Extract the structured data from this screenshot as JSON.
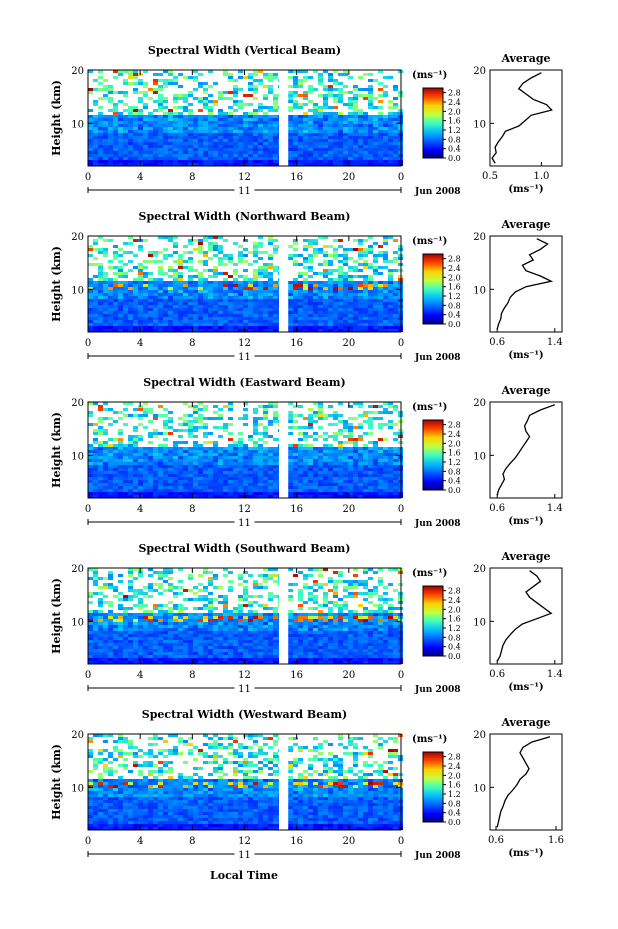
{
  "figure": {
    "xlabel": "Local Time",
    "cbar_unit": "(ms⁻¹)",
    "cbar_ticks": [
      "0.0",
      "0.4",
      "0.8",
      "1.2",
      "1.6",
      "2.0",
      "2.4",
      "2.8"
    ],
    "avg_title": "Average",
    "avg_xlabel": "(ms⁻¹)",
    "date_label": "Jun 2008",
    "day_label": "11",
    "x_ticks": [
      "0",
      "4",
      "8",
      "12",
      "16",
      "20",
      "0"
    ],
    "y_label": "Height (km)",
    "y_ticks": [
      "10",
      "20"
    ]
  },
  "chart_data": [
    {
      "type": "heatmap",
      "title": "Spectral Width (Vertical Beam)",
      "xlabel": "Local Time",
      "ylabel": "Height (km)",
      "xlim": [
        0,
        24
      ],
      "ylim": [
        2,
        20
      ],
      "clim": [
        0.0,
        3.0
      ],
      "data_gap_hours": [
        14.8,
        15.2
      ],
      "average_profile": {
        "title": "Average",
        "xlabel": "(ms⁻¹)",
        "x_ticks": [
          "0.5",
          "1.0"
        ],
        "xlim": [
          0.5,
          1.2
        ],
        "height_km": [
          2.5,
          3.5,
          4.5,
          5.5,
          6.5,
          7.5,
          8.5,
          9.5,
          10.5,
          11.5,
          12.5,
          13.5,
          14.5,
          15.5,
          16.5,
          17.5,
          18.5,
          19.5
        ],
        "values": [
          0.55,
          0.52,
          0.56,
          0.55,
          0.58,
          0.62,
          0.65,
          0.78,
          0.84,
          0.9,
          1.1,
          1.05,
          0.92,
          0.85,
          0.78,
          0.82,
          0.9,
          1.0
        ]
      }
    },
    {
      "type": "heatmap",
      "title": "Spectral Width (Northward Beam)",
      "xlabel": "Local Time",
      "ylabel": "Height (km)",
      "xlim": [
        0,
        24
      ],
      "ylim": [
        2,
        20
      ],
      "clim": [
        0.0,
        3.0
      ],
      "data_gap_hours": [
        14.8,
        15.2
      ],
      "average_profile": {
        "title": "Average",
        "xlabel": "(ms⁻¹)",
        "x_ticks": [
          "0.6",
          "1.4"
        ],
        "xlim": [
          0.5,
          1.5
        ],
        "height_km": [
          2.5,
          3.5,
          4.5,
          5.5,
          6.5,
          7.5,
          8.5,
          9.5,
          10.5,
          11.5,
          12.5,
          13.5,
          14.5,
          15.5,
          16.5,
          17.5,
          18.5,
          19.5
        ],
        "values": [
          0.6,
          0.62,
          0.65,
          0.66,
          0.7,
          0.75,
          0.78,
          0.85,
          1.0,
          1.35,
          1.2,
          1.0,
          0.95,
          1.1,
          1.05,
          1.2,
          1.3,
          1.15
        ]
      }
    },
    {
      "type": "heatmap",
      "title": "Spectral Width (Eastward Beam)",
      "xlabel": "Local Time",
      "ylabel": "Height (km)",
      "xlim": [
        0,
        24
      ],
      "ylim": [
        2,
        20
      ],
      "clim": [
        0.0,
        3.0
      ],
      "data_gap_hours": [
        14.8,
        15.2
      ],
      "average_profile": {
        "title": "Average",
        "xlabel": "(ms⁻¹)",
        "x_ticks": [
          "0.6",
          "1.4"
        ],
        "xlim": [
          0.5,
          1.5
        ],
        "height_km": [
          2.5,
          3.5,
          4.5,
          5.5,
          6.5,
          7.5,
          8.5,
          9.5,
          10.5,
          11.5,
          12.5,
          13.5,
          14.5,
          15.5,
          16.5,
          17.5,
          18.5,
          19.5
        ],
        "values": [
          0.6,
          0.62,
          0.66,
          0.7,
          0.68,
          0.72,
          0.78,
          0.85,
          0.9,
          0.95,
          1.0,
          1.05,
          1.0,
          0.98,
          1.02,
          1.05,
          1.2,
          1.4
        ]
      }
    },
    {
      "type": "heatmap",
      "title": "Spectral Width (Southward Beam)",
      "xlabel": "Local Time",
      "ylabel": "Height (km)",
      "xlim": [
        0,
        24
      ],
      "ylim": [
        2,
        20
      ],
      "clim": [
        0.0,
        3.0
      ],
      "data_gap_hours": [
        14.8,
        15.2
      ],
      "average_profile": {
        "title": "Average",
        "xlabel": "(ms⁻¹)",
        "x_ticks": [
          "0.6",
          "1.4"
        ],
        "xlim": [
          0.5,
          1.5
        ],
        "height_km": [
          2.5,
          3.5,
          4.5,
          5.5,
          6.5,
          7.5,
          8.5,
          9.5,
          10.5,
          11.5,
          12.5,
          13.5,
          14.5,
          15.5,
          16.5,
          17.5,
          18.5,
          19.5
        ],
        "values": [
          0.6,
          0.64,
          0.66,
          0.68,
          0.72,
          0.78,
          0.85,
          0.95,
          1.15,
          1.35,
          1.25,
          1.15,
          1.05,
          1.0,
          1.1,
          1.2,
          1.15,
          1.05
        ]
      }
    },
    {
      "type": "heatmap",
      "title": "Spectral Width (Westward Beam)",
      "xlabel": "Local Time",
      "ylabel": "Height (km)",
      "xlim": [
        0,
        24
      ],
      "ylim": [
        2,
        20
      ],
      "clim": [
        0.0,
        3.0
      ],
      "data_gap_hours": [
        14.8,
        15.2
      ],
      "average_profile": {
        "title": "Average",
        "xlabel": "(ms⁻¹)",
        "x_ticks": [
          "0.6",
          "1.6"
        ],
        "xlim": [
          0.5,
          1.7
        ],
        "height_km": [
          2.5,
          3.5,
          4.5,
          5.5,
          6.5,
          7.5,
          8.5,
          9.5,
          10.5,
          11.5,
          12.5,
          13.5,
          14.5,
          15.5,
          16.5,
          17.5,
          18.5,
          19.5
        ],
        "values": [
          0.62,
          0.64,
          0.66,
          0.68,
          0.72,
          0.75,
          0.8,
          0.88,
          0.95,
          1.0,
          1.1,
          1.15,
          1.1,
          1.05,
          1.0,
          1.05,
          1.2,
          1.5
        ]
      }
    }
  ]
}
